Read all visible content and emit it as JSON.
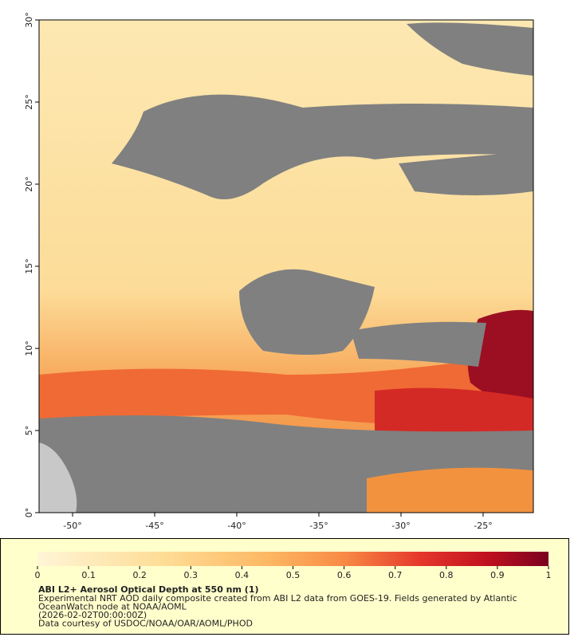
{
  "map": {
    "xlim": [
      -52.04,
      -21.94
    ],
    "ylim": [
      0,
      30
    ],
    "xticks": [
      {
        "value": -50,
        "label": "-50°"
      },
      {
        "value": -45,
        "label": "-45°"
      },
      {
        "value": -40,
        "label": "-40°"
      },
      {
        "value": -35,
        "label": "-35°"
      },
      {
        "value": -30,
        "label": "-30°"
      },
      {
        "value": -25,
        "label": "-25°"
      }
    ],
    "yticks": [
      {
        "value": 0,
        "label": "0°"
      },
      {
        "value": 5,
        "label": "5°"
      },
      {
        "value": 10,
        "label": "10°"
      },
      {
        "value": 15,
        "label": "15°"
      },
      {
        "value": 20,
        "label": "20°"
      },
      {
        "value": 25,
        "label": "25°"
      },
      {
        "value": 30,
        "label": "30°"
      }
    ]
  },
  "colorbar": {
    "range": [
      0,
      1
    ],
    "ticks": [
      0,
      0.1,
      0.2,
      0.3,
      0.4,
      0.5,
      0.6,
      0.7,
      0.8,
      0.9,
      1
    ]
  },
  "caption": {
    "title": "ABI L2+ Aerosol Optical Depth at 550 nm (1)",
    "lines": [
      "Experimental NRT AOD daily composite created from ABI L2 data from GOES-19. Fields generated by Atlantic",
      "OceanWatch node at NOAA/AOML",
      "(2026-02-02T00:00:00Z)",
      "Data courtesy of USDOC/NOAA/OAR/AOML/PHOD"
    ]
  }
}
